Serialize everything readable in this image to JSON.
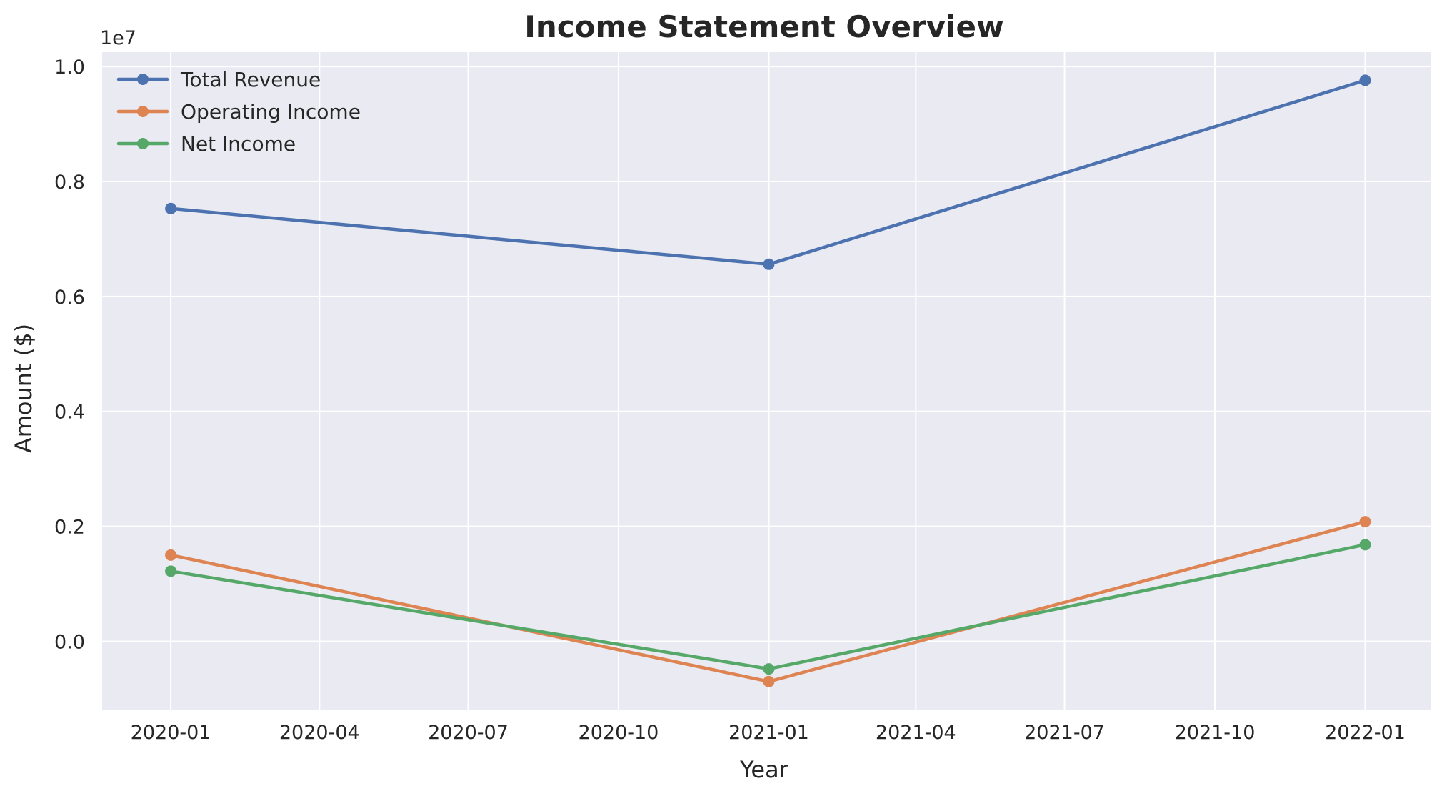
{
  "chart_data": {
    "type": "line",
    "title": "Income Statement Overview",
    "xlabel": "Year",
    "ylabel": "Amount ($)",
    "y_offset_label": "1e7",
    "x": [
      "2020-01-01",
      "2021-01-01",
      "2022-01-01"
    ],
    "x_ticks": [
      "2020-01",
      "2020-04",
      "2020-07",
      "2020-10",
      "2021-01",
      "2021-04",
      "2021-07",
      "2021-10",
      "2022-01"
    ],
    "xlim": [
      "2019-11-20",
      "2022-02-10"
    ],
    "y_ticks": [
      "0.0",
      "0.2",
      "0.4",
      "0.6",
      "0.8",
      "1.0"
    ],
    "y_tick_values": [
      0,
      2000000,
      4000000,
      6000000,
      8000000,
      10000000
    ],
    "ylim": [
      -1200000,
      10250000
    ],
    "grid": true,
    "background": "#eaeaf2",
    "legend_position": "top-left",
    "series": [
      {
        "name": "Total Revenue",
        "color": "#4c72b0",
        "values": [
          7530000,
          6560000,
          9760000
        ]
      },
      {
        "name": "Operating Income",
        "color": "#dd8452",
        "values": [
          1500000,
          -700000,
          2080000
        ]
      },
      {
        "name": "Net Income",
        "color": "#55a868",
        "values": [
          1220000,
          -480000,
          1680000
        ]
      }
    ]
  }
}
